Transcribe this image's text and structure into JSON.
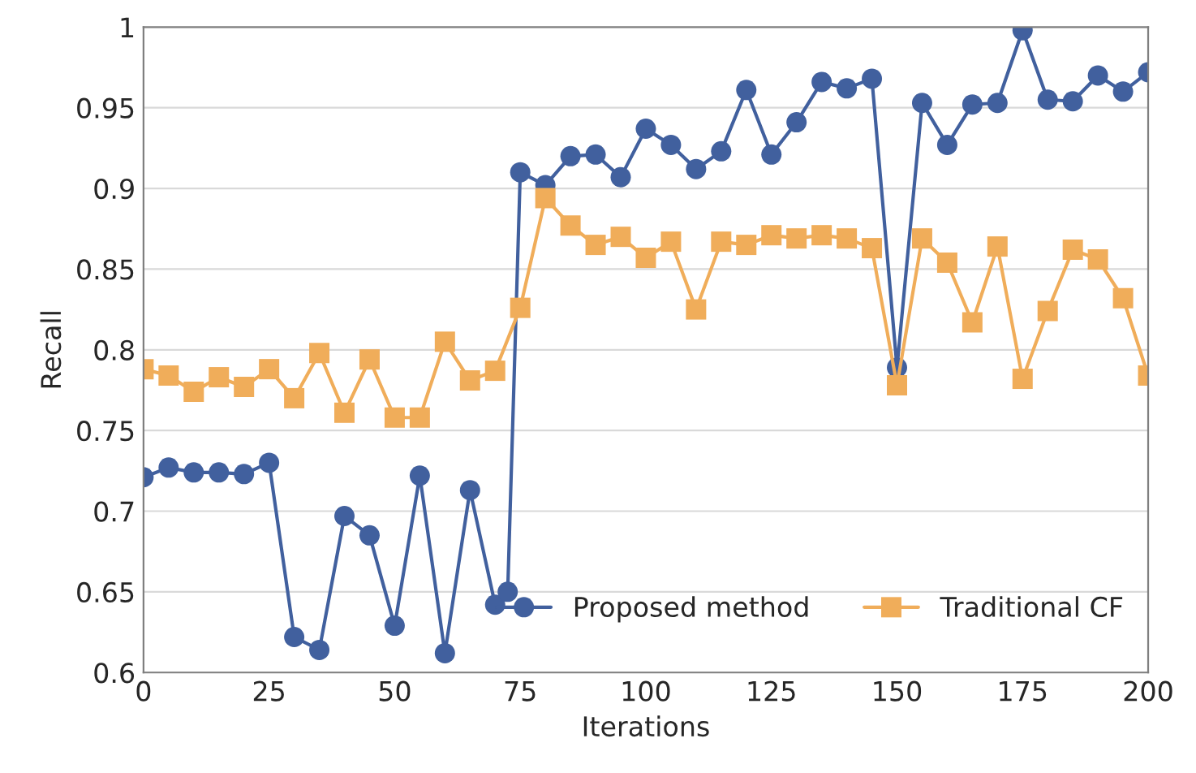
{
  "chart_data": {
    "type": "line",
    "xlabel": "Iterations",
    "ylabel": "Recall",
    "x": [
      0,
      5,
      10,
      15,
      20,
      25,
      30,
      35,
      40,
      45,
      50,
      55,
      60,
      65,
      70,
      75,
      80,
      85,
      90,
      95,
      100,
      105,
      110,
      115,
      120,
      125,
      130,
      135,
      140,
      145,
      150,
      155,
      160,
      165,
      170,
      175,
      180,
      185,
      190,
      195,
      200
    ],
    "series": [
      {
        "name": "Proposed method",
        "color": "#41609e",
        "marker": "circle",
        "x": [
          0,
          5,
          10,
          15,
          20,
          25,
          30,
          35,
          40,
          45,
          50,
          55,
          60,
          65,
          70,
          72.5,
          75,
          80,
          85,
          90,
          95,
          100,
          105,
          110,
          115,
          120,
          125,
          130,
          135,
          140,
          145,
          150,
          155,
          160,
          165,
          170,
          175,
          180,
          185,
          190,
          195,
          200
        ],
        "values": [
          0.721,
          0.727,
          0.724,
          0.724,
          0.723,
          0.73,
          0.622,
          0.614,
          0.697,
          0.685,
          0.629,
          0.722,
          0.612,
          0.713,
          0.642,
          0.65,
          0.91,
          0.902,
          0.92,
          0.921,
          0.907,
          0.937,
          0.927,
          0.912,
          0.923,
          0.961,
          0.921,
          0.941,
          0.966,
          0.962,
          0.968,
          0.789,
          0.953,
          0.927,
          0.952,
          0.953,
          0.998,
          0.955,
          0.954,
          0.97,
          0.96,
          0.972
        ]
      },
      {
        "name": "Traditional CF",
        "color": "#f0ad5a",
        "marker": "square",
        "values": [
          0.788,
          0.784,
          0.774,
          0.783,
          0.777,
          0.788,
          0.77,
          0.798,
          0.761,
          0.794,
          0.758,
          0.758,
          0.805,
          0.781,
          0.787,
          0.826,
          0.894,
          0.877,
          0.865,
          0.87,
          0.857,
          0.867,
          0.825,
          0.867,
          0.865,
          0.871,
          0.869,
          0.871,
          0.869,
          0.863,
          0.778,
          0.869,
          0.854,
          0.817,
          0.864,
          0.782,
          0.824,
          0.862,
          0.856,
          0.832,
          0.784
        ]
      }
    ],
    "xlim": [
      0,
      200
    ],
    "xticks": [
      0,
      25,
      50,
      75,
      100,
      125,
      150,
      175,
      200
    ],
    "ylim": [
      0.6,
      1
    ],
    "yticks": [
      {
        "value": 0.6,
        "label": "0.6"
      },
      {
        "value": 0.65,
        "label": "0.65"
      },
      {
        "value": 0.7,
        "label": "0.7"
      },
      {
        "value": 0.75,
        "label": "0.75"
      },
      {
        "value": 0.8,
        "label": "0.8"
      },
      {
        "value": 0.85,
        "label": "0.85"
      },
      {
        "value": 0.9,
        "label": "0.9"
      },
      {
        "value": 0.95,
        "label": "0.95"
      },
      {
        "value": 1,
        "label": "1"
      }
    ],
    "grid": "y",
    "legend": "bottom right",
    "line_style": "solid"
  }
}
